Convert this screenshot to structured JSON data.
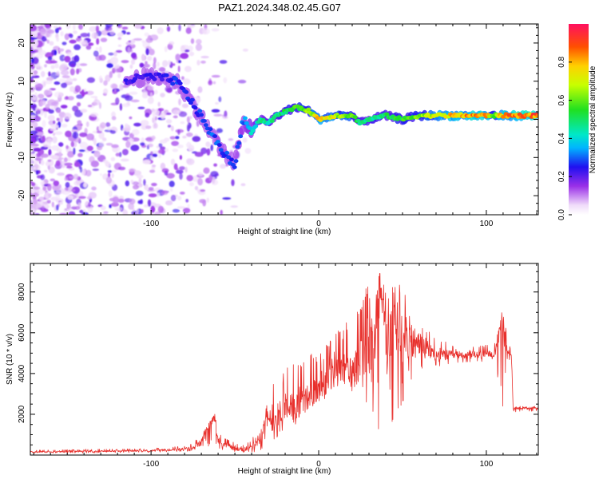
{
  "title": "PAZ1.2024.348.02.45.G07",
  "chart_data": [
    {
      "type": "heatmap",
      "xlabel": "Height of straight line (km)",
      "ylabel": "Frequency (Hz)",
      "xlim": [
        -172,
        131
      ],
      "ylim": [
        -25,
        25
      ],
      "xticks": [
        -100,
        0,
        100
      ],
      "yticks": [
        -20,
        -10,
        0,
        10,
        20
      ],
      "colorbar": {
        "label": "Normalized spectral amplitude",
        "range": [
          0,
          1
        ],
        "ticks": [
          0.0,
          0.2,
          0.4,
          0.6,
          0.8
        ]
      },
      "grid": false,
      "ridge_frequency_track": {
        "x": [
          -115,
          -105,
          -95,
          -85,
          -78,
          -72,
          -65,
          -58,
          -50,
          -45,
          -40,
          -35,
          -30,
          -25,
          -20,
          -15,
          -10,
          -5,
          0,
          10,
          20,
          25,
          30,
          40,
          50,
          60,
          70,
          80,
          90,
          100,
          105,
          110,
          120,
          131
        ],
        "y": [
          10,
          11,
          11,
          10,
          6,
          2,
          -3,
          -8,
          -12,
          0,
          -3,
          0,
          -1,
          1,
          2,
          3,
          3,
          2,
          0,
          1,
          1,
          -1,
          0,
          1,
          0,
          1,
          1,
          1,
          1,
          1,
          1,
          1,
          1,
          1
        ],
        "amplitude": [
          0.25,
          0.25,
          0.25,
          0.3,
          0.28,
          0.3,
          0.32,
          0.32,
          0.3,
          0.35,
          0.45,
          0.5,
          0.5,
          0.55,
          0.55,
          0.6,
          0.65,
          0.7,
          0.85,
          0.75,
          0.65,
          0.5,
          0.5,
          0.55,
          0.6,
          0.65,
          0.8,
          0.85,
          0.9,
          0.9,
          0.6,
          0.95,
          0.95,
          0.95
        ]
      }
    },
    {
      "type": "line",
      "xlabel": "Height of straight line (km)",
      "ylabel": "SNR (10 * v/v)",
      "xlim": [
        -172,
        131
      ],
      "ylim": [
        0,
        9400
      ],
      "xticks": [
        -100,
        0,
        100
      ],
      "yticks": [
        2000,
        4000,
        6000,
        8000
      ],
      "color": "#e8302c",
      "grid": false,
      "series": [
        {
          "x": [
            -172,
            -160,
            -140,
            -120,
            -100,
            -90,
            -80,
            -75,
            -70,
            -66,
            -62,
            -60,
            -55,
            -50,
            -45,
            -40,
            -35,
            -32,
            -30,
            -25,
            -20,
            -15,
            -10,
            -5,
            0,
            5,
            10,
            15,
            20,
            25,
            30,
            35,
            38,
            40,
            45,
            50,
            55,
            60,
            70,
            80,
            90,
            100,
            105,
            108,
            110,
            112,
            115,
            116,
            120,
            131
          ],
          "y": [
            150,
            150,
            180,
            200,
            220,
            250,
            300,
            380,
            600,
            1400,
            2000,
            700,
            500,
            300,
            250,
            350,
            900,
            1800,
            1500,
            1800,
            2500,
            2300,
            2500,
            3000,
            3200,
            3500,
            4000,
            4200,
            4000,
            4800,
            5200,
            6500,
            9400,
            5000,
            6000,
            6500,
            5500,
            5500,
            4900,
            4900,
            4900,
            4900,
            5000,
            6300,
            7500,
            5300,
            4900,
            2300,
            2300,
            2300
          ],
          "min": [
            80,
            80,
            100,
            120,
            130,
            150,
            180,
            200,
            250,
            400,
            600,
            300,
            200,
            150,
            130,
            120,
            200,
            400,
            300,
            800,
            1200,
            1300,
            1800,
            2200,
            2500,
            2800,
            3000,
            3200,
            2800,
            2500,
            2000,
            1500,
            500,
            1500,
            1500,
            2500,
            3000,
            4000,
            4300,
            4500,
            4500,
            4600,
            4700,
            3000,
            2000,
            4700,
            4600,
            2100,
            2150,
            2150
          ],
          "max": [
            250,
            250,
            280,
            300,
            330,
            380,
            450,
            600,
            1000,
            1500,
            2000,
            1100,
            800,
            600,
            500,
            700,
            1800,
            3200,
            3000,
            3800,
            4200,
            4500,
            4600,
            5000,
            5000,
            5500,
            6000,
            6500,
            6800,
            7200,
            8700,
            8500,
            9400,
            8000,
            8500,
            8400,
            7900,
            6500,
            5800,
            5400,
            5300,
            5400,
            5500,
            6300,
            7500,
            6000,
            5000,
            2400,
            2400,
            2400
          ]
        }
      ]
    }
  ]
}
